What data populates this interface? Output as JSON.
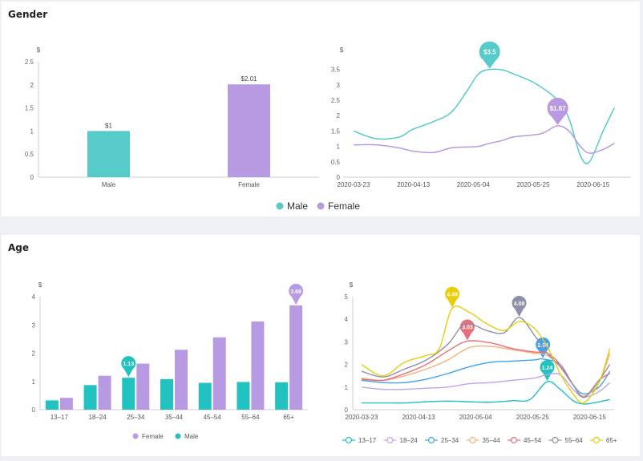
{
  "colors": {
    "male": "#56cbc9",
    "female": "#b79ae2",
    "ages": [
      "#21c2c0",
      "#c0a4ee",
      "#42a3ec",
      "#f4b27c",
      "#ea6e7a",
      "#8e8fa8",
      "#e8cd0b"
    ]
  },
  "gender": {
    "title": "Gender",
    "bar_data": {
      "type": "bar",
      "ylabel": "$",
      "ylim": [
        0,
        2.5
      ],
      "yticks": [
        "0",
        "0.5",
        "1",
        "1.5",
        "2",
        "2.5"
      ],
      "categories": [
        "Male",
        "Female"
      ],
      "values": [
        1,
        2.01
      ],
      "value_labels": [
        "$1",
        "$2.01"
      ]
    },
    "line_data": {
      "type": "line",
      "ylabel": "$",
      "ylim": [
        0,
        3.75
      ],
      "yticks": [
        "0",
        "0.5",
        "1",
        "1.5",
        "2",
        "2.5",
        "3",
        "3.5"
      ],
      "xtick_labels": [
        "2020-03-23",
        "2020-04-13",
        "2020-05-04",
        "2020-05-25",
        "2020-06-15"
      ],
      "legend": [
        "Male",
        "Female"
      ],
      "series": [
        {
          "name": "Male",
          "peak_label": "$3.5",
          "points": [
            [
              0,
              1.5
            ],
            [
              1,
              1.25
            ],
            [
              2,
              1.3
            ],
            [
              2.6,
              1.55
            ],
            [
              3.5,
              1.8
            ],
            [
              4.3,
              2.1
            ],
            [
              5,
              2.8
            ],
            [
              5.5,
              3.35
            ],
            [
              6,
              3.5
            ],
            [
              6.6,
              3.48
            ],
            [
              7,
              3.37
            ],
            [
              8,
              3.05
            ],
            [
              9,
              2.5
            ],
            [
              9.5,
              1.9
            ],
            [
              10,
              0.7
            ],
            [
              10.4,
              0.5
            ],
            [
              11,
              1.5
            ],
            [
              11.5,
              2.25
            ]
          ]
        },
        {
          "name": "Female",
          "peak_label": "$1.67",
          "points": [
            [
              0,
              1.05
            ],
            [
              1,
              1.05
            ],
            [
              2,
              0.95
            ],
            [
              2.6,
              0.85
            ],
            [
              3.5,
              0.8
            ],
            [
              4.3,
              0.95
            ],
            [
              5,
              0.98
            ],
            [
              5.5,
              1.0
            ],
            [
              6,
              1.1
            ],
            [
              6.6,
              1.2
            ],
            [
              7,
              1.3
            ],
            [
              8,
              1.38
            ],
            [
              8.4,
              1.45
            ],
            [
              9,
              1.67
            ],
            [
              9.5,
              1.5
            ],
            [
              10,
              1.0
            ],
            [
              10.4,
              0.78
            ],
            [
              11,
              0.9
            ],
            [
              11.5,
              1.1
            ]
          ]
        }
      ]
    }
  },
  "age": {
    "title": "Age",
    "bar_data": {
      "type": "bar",
      "ylabel": "$",
      "ylim": [
        0,
        4
      ],
      "yticks": [
        "0",
        "1",
        "2",
        "3",
        "4"
      ],
      "categories": [
        "13–17",
        "18–24",
        "25–34",
        "35–44",
        "45–54",
        "55–64",
        "65+"
      ],
      "series": [
        {
          "name": "Male",
          "values": [
            0.33,
            0.87,
            1.13,
            1.08,
            0.95,
            0.98,
            0.97
          ]
        },
        {
          "name": "Female",
          "values": [
            0.42,
            1.2,
            1.63,
            2.12,
            2.56,
            3.12,
            3.69
          ]
        }
      ],
      "callouts": [
        {
          "series": "Male",
          "category": "25–34",
          "label": "1.13"
        },
        {
          "series": "Female",
          "category": "65+",
          "label": "3.69"
        }
      ],
      "legend": [
        "Female",
        "Male"
      ]
    },
    "line_data": {
      "type": "line",
      "ylabel": "$",
      "ylim": [
        0,
        5
      ],
      "yticks": [
        "0",
        "1",
        "2",
        "3",
        "4",
        "5"
      ],
      "xtick_labels": [
        "2020-03-23",
        "2020-04-13",
        "2020-05-04",
        "2020-05-25",
        "2020-06-15"
      ],
      "legend": [
        "13–17",
        "18–24",
        "25–34",
        "35–44",
        "45–54",
        "55–64",
        "65+"
      ],
      "series": [
        {
          "name": "13–17",
          "peak_label": "1.24",
          "peak_x": 8.6,
          "points": [
            [
              0,
              0.3
            ],
            [
              1,
              0.3
            ],
            [
              2,
              0.3
            ],
            [
              3,
              0.35
            ],
            [
              4,
              0.38
            ],
            [
              5,
              0.35
            ],
            [
              6,
              0.33
            ],
            [
              7,
              0.4
            ],
            [
              7.8,
              0.45
            ],
            [
              8.6,
              1.24
            ],
            [
              9.2,
              0.9
            ],
            [
              9.8,
              0.4
            ],
            [
              10.3,
              0.25
            ],
            [
              11,
              0.35
            ],
            [
              11.5,
              0.45
            ]
          ]
        },
        {
          "name": "18–24",
          "peak_label": "",
          "peak_x": 0,
          "points": [
            [
              0,
              1.0
            ],
            [
              1,
              0.9
            ],
            [
              2,
              0.9
            ],
            [
              3,
              0.95
            ],
            [
              4,
              1.0
            ],
            [
              5,
              1.15
            ],
            [
              6,
              1.2
            ],
            [
              7,
              1.3
            ],
            [
              8,
              1.4
            ],
            [
              8.6,
              1.55
            ],
            [
              9.2,
              1.55
            ],
            [
              9.8,
              0.9
            ],
            [
              10.3,
              0.55
            ],
            [
              11,
              0.8
            ],
            [
              11.5,
              1.2
            ]
          ]
        },
        {
          "name": "25–34",
          "peak_label": "2.24",
          "peak_x": 8.4,
          "points": [
            [
              0,
              1.3
            ],
            [
              1,
              1.2
            ],
            [
              2,
              1.2
            ],
            [
              3,
              1.35
            ],
            [
              4,
              1.6
            ],
            [
              5,
              1.9
            ],
            [
              6,
              2.1
            ],
            [
              7,
              2.15
            ],
            [
              8,
              2.2
            ],
            [
              8.4,
              2.24
            ],
            [
              9.2,
              2.0
            ],
            [
              9.8,
              1.1
            ],
            [
              10.3,
              0.7
            ],
            [
              11,
              1.0
            ],
            [
              11.5,
              1.7
            ]
          ]
        },
        {
          "name": "35–44",
          "peak_label": "",
          "peak_x": 0,
          "points": [
            [
              0,
              1.4
            ],
            [
              1,
              1.3
            ],
            [
              2,
              1.5
            ],
            [
              3,
              1.8
            ],
            [
              4,
              2.2
            ],
            [
              5,
              2.75
            ],
            [
              6,
              2.8
            ],
            [
              7,
              2.65
            ],
            [
              8,
              2.5
            ],
            [
              8.6,
              2.4
            ],
            [
              9.2,
              1.9
            ],
            [
              9.8,
              1.1
            ],
            [
              10.3,
              0.6
            ],
            [
              11,
              1.2
            ],
            [
              11.5,
              2.5
            ]
          ]
        },
        {
          "name": "45–54",
          "peak_label": "3.03",
          "peak_x": 4.9,
          "points": [
            [
              0,
              1.35
            ],
            [
              1,
              1.3
            ],
            [
              2,
              1.6
            ],
            [
              3,
              2.0
            ],
            [
              4,
              2.6
            ],
            [
              4.9,
              3.03
            ],
            [
              6,
              2.95
            ],
            [
              7,
              2.7
            ],
            [
              8,
              2.55
            ],
            [
              8.6,
              2.5
            ],
            [
              9.2,
              2.0
            ],
            [
              9.8,
              1.1
            ],
            [
              10.3,
              0.55
            ],
            [
              11,
              1.3
            ],
            [
              11.5,
              1.6
            ]
          ]
        },
        {
          "name": "55–64",
          "peak_label": "4.08",
          "peak_x": 7.3,
          "points": [
            [
              0,
              1.7
            ],
            [
              1,
              1.45
            ],
            [
              2,
              1.8
            ],
            [
              3,
              2.2
            ],
            [
              4,
              2.9
            ],
            [
              4.8,
              3.8
            ],
            [
              5.8,
              3.5
            ],
            [
              6.6,
              3.4
            ],
            [
              7.3,
              4.08
            ],
            [
              8,
              3.3
            ],
            [
              8.6,
              2.5
            ],
            [
              9.2,
              1.9
            ],
            [
              9.8,
              1.1
            ],
            [
              10.3,
              0.55
            ],
            [
              11,
              1.3
            ],
            [
              11.5,
              2.0
            ]
          ]
        },
        {
          "name": "65+",
          "peak_label": "4.48",
          "peak_x": 4.2,
          "points": [
            [
              0,
              2.0
            ],
            [
              1,
              1.5
            ],
            [
              2,
              2.1
            ],
            [
              3,
              2.4
            ],
            [
              3.6,
              2.7
            ],
            [
              4.2,
              4.48
            ],
            [
              5,
              4.3
            ],
            [
              5.8,
              3.8
            ],
            [
              6.6,
              3.5
            ],
            [
              7.3,
              3.9
            ],
            [
              8,
              3.6
            ],
            [
              8.6,
              2.8
            ],
            [
              9.2,
              1.6
            ],
            [
              9.8,
              0.7
            ],
            [
              10.3,
              0.3
            ],
            [
              11,
              1.2
            ],
            [
              11.5,
              2.7
            ]
          ]
        }
      ]
    }
  }
}
